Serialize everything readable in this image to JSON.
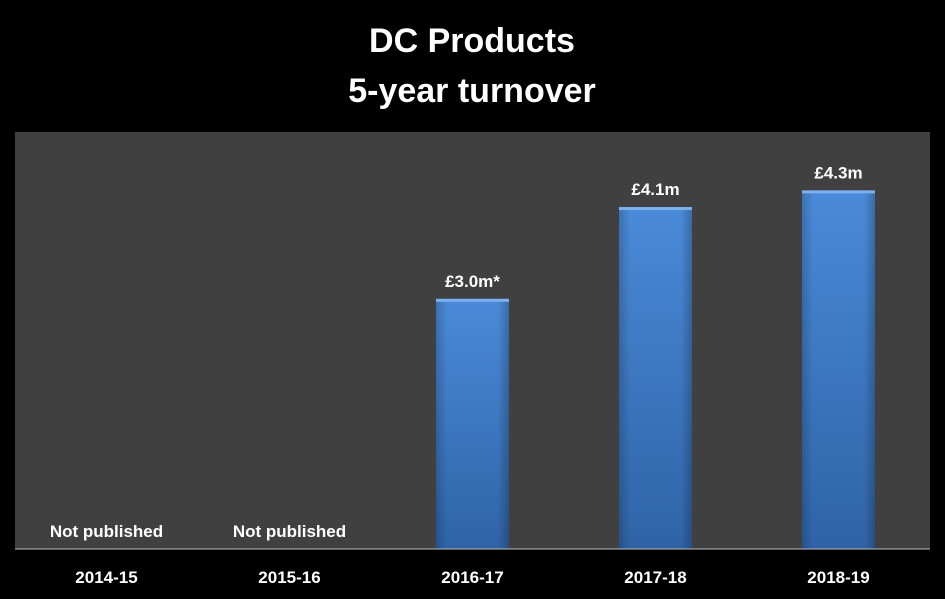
{
  "chart_data": {
    "type": "bar",
    "title": "DC Products",
    "subtitle": "5-year turnover",
    "categories": [
      "2014-15",
      "2015-16",
      "2016-17",
      "2017-18",
      "2018-19"
    ],
    "values": [
      null,
      null,
      3.0,
      4.1,
      4.3
    ],
    "data_labels": [
      "Not published",
      "Not published",
      "£3.0m*",
      "£4.1m",
      "£4.3m"
    ],
    "unit": "£m",
    "ylim": [
      0,
      5.0
    ],
    "grid": false,
    "legend": "none",
    "colors": {
      "page_background": "#000000",
      "plot_background": "#404040",
      "bar_top": "#4a8ad8",
      "bar_bottom": "#2f63a6",
      "text": "#ffffff",
      "axis_line": "#bfbfbf"
    }
  }
}
